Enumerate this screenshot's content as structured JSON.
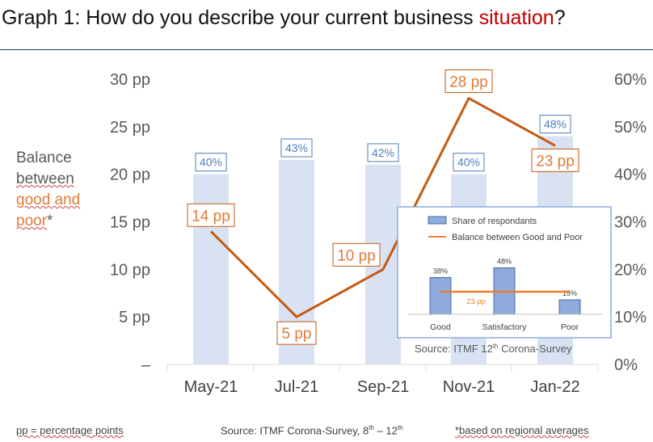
{
  "title": {
    "prefix": "Graph 1: How do you describe your current business ",
    "accent": "situation",
    "suffix": "?"
  },
  "ylabel": {
    "line1": "Balance",
    "line2": "between",
    "line3": "good and",
    "line4": "poor",
    "star": "*"
  },
  "footer": {
    "left": "pp = percentage points",
    "source_pre": "Source: ITMF Corona-Survey, 8",
    "source_sup1": "th",
    "source_mid": " – 12",
    "source_sup2": "th",
    "right": "*based on regional averages"
  },
  "chart_data": [
    {
      "type": "bar+line",
      "categories": [
        "May-21",
        "Jul-21",
        "Sep-21",
        "Nov-21",
        "Jan-22"
      ],
      "series": [
        {
          "values": [
            40,
            43,
            42,
            40,
            48
          ],
          "labels": [
            "40%",
            "43%",
            "42%",
            "40%",
            "48%"
          ],
          "axis": "right",
          "type": "bar"
        },
        {
          "values": [
            14,
            5,
            10,
            28,
            23
          ],
          "labels": [
            "14 pp",
            "5 pp",
            "10 pp",
            "28 pp",
            "23 pp"
          ],
          "axis": "left",
          "type": "line"
        }
      ],
      "left_axis": {
        "ticks": [
          "–",
          "5 pp",
          "10 pp",
          "15 pp",
          "20 pp",
          "25 pp",
          "30 pp"
        ],
        "ylim": [
          0,
          30
        ]
      },
      "right_axis": {
        "ticks": [
          "0%",
          "10%",
          "20%",
          "30%",
          "40%",
          "50%",
          "60%"
        ],
        "ylim": [
          0,
          60
        ]
      },
      "colors": {
        "bar": "#d9e2f3",
        "bar_label": "#4a7ebb",
        "line": "#c55a11",
        "line_label": "#e07b39"
      }
    },
    {
      "type": "bar+line",
      "categories": [
        "Good",
        "Satisfactory",
        "Poor"
      ],
      "series": [
        {
          "name": "Share of respondants",
          "values": [
            38,
            48,
            15
          ],
          "labels": [
            "38%",
            "48%",
            "15%"
          ],
          "type": "bar"
        },
        {
          "name": "Balance between Good and Poor",
          "values": [
            23,
            23,
            23
          ],
          "labels": [
            "23 pp"
          ],
          "type": "line"
        }
      ],
      "source": "Source: ITMF 12",
      "source_sup": "th",
      "source_suffix": " Corona-Survey",
      "colors": {
        "bar": "#8faadc",
        "bar_border": "#2f5597",
        "line": "#ed7d31"
      }
    }
  ]
}
